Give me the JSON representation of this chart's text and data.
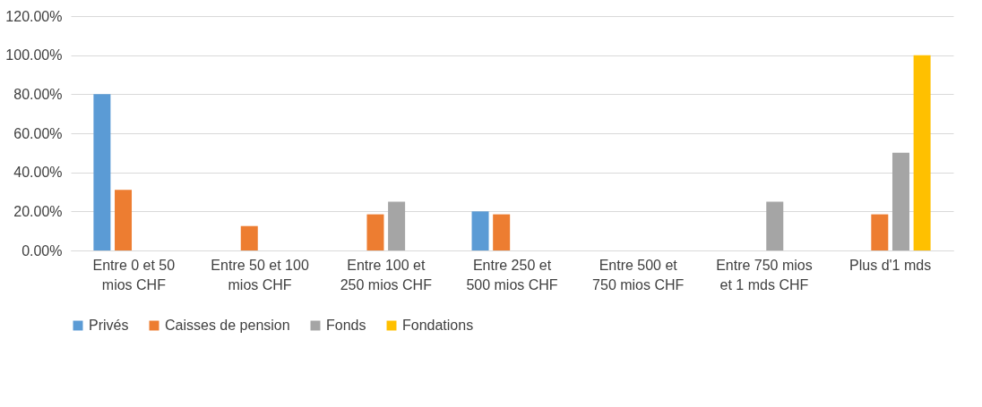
{
  "chart_data": {
    "type": "bar",
    "categories": [
      "Entre 0 et 50 mios CHF",
      "Entre 50 et 100 mios CHF",
      "Entre 100 et 250 mios CHF",
      "Entre 250 et 500 mios CHF",
      "Entre 500 et 750 mios CHF",
      "Entre 750 mios et 1 mds CHF",
      "Plus d'1 mds"
    ],
    "series": [
      {
        "name": "Privés",
        "color": "#5b9bd5",
        "values": [
          80,
          0,
          0,
          20,
          0,
          0,
          0
        ]
      },
      {
        "name": "Caisses de pension",
        "color": "#ed7d31",
        "values": [
          31,
          12.5,
          18.5,
          18.5,
          0,
          0,
          18.5
        ]
      },
      {
        "name": "Fonds",
        "color": "#a5a5a5",
        "values": [
          0,
          0,
          25,
          0,
          0,
          25,
          50
        ]
      },
      {
        "name": "Fondations",
        "color": "#ffc000",
        "values": [
          0,
          0,
          0,
          0,
          0,
          0,
          100
        ]
      }
    ],
    "ylim": [
      0,
      120
    ],
    "yticks": [
      {
        "value": 0,
        "label": "0.00%"
      },
      {
        "value": 20,
        "label": "20.00%"
      },
      {
        "value": 40,
        "label": "40.00%"
      },
      {
        "value": 60,
        "label": "60.00%"
      },
      {
        "value": 80,
        "label": "80.00%"
      },
      {
        "value": 100,
        "label": "100.00%"
      },
      {
        "value": 120,
        "label": "120.00%"
      }
    ],
    "grid": "y",
    "legend": "bottom"
  }
}
